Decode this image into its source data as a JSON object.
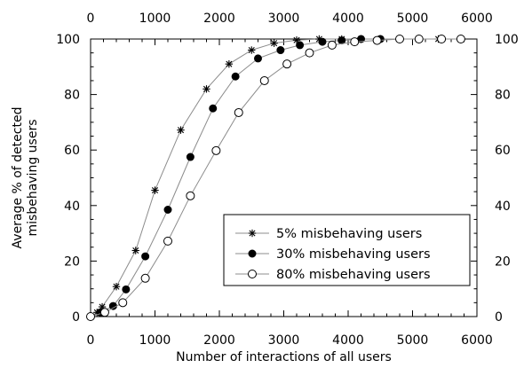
{
  "chart_data": {
    "type": "line",
    "title": "",
    "xlabel": "Number of interactions of all users",
    "ylabel_lines": [
      "Average % of detected",
      "misbehaving users"
    ],
    "xlim": [
      0,
      6000
    ],
    "ylim": [
      0,
      100
    ],
    "x_ticks": [
      "0",
      "1000",
      "2000",
      "3000",
      "4000",
      "5000",
      "6000"
    ],
    "y_ticks": [
      "0",
      "20",
      "40",
      "60",
      "80",
      "100"
    ],
    "mirror_axes": true,
    "grid": false,
    "legend_position": "bottom-right",
    "series": [
      {
        "name": "5% misbehaving users",
        "marker": "asterisk",
        "x": [
          0,
          100,
          180,
          400,
          700,
          1000,
          1400,
          1800,
          2150,
          2500,
          2850,
          3200,
          3550,
          3900,
          4200,
          4500,
          4800,
          5100,
          5400,
          5750
        ],
        "y": [
          0,
          1.5,
          3.5,
          10.8,
          23.8,
          45.5,
          67.2,
          82,
          91,
          96,
          98.5,
          99.6,
          100,
          100,
          100,
          100,
          100,
          100,
          100,
          100
        ]
      },
      {
        "name": "30% misbehaving users",
        "marker": "filled-circle",
        "x": [
          0,
          150,
          350,
          550,
          850,
          1200,
          1550,
          1900,
          2250,
          2600,
          2950,
          3250,
          3600,
          3900,
          4200,
          4500,
          4800,
          5100,
          5450,
          5750
        ],
        "y": [
          0,
          1.5,
          3.8,
          9.8,
          21.7,
          38.5,
          57.5,
          75,
          86.5,
          93,
          96,
          97.8,
          99,
          99.5,
          100,
          100,
          100,
          100,
          100,
          100
        ]
      },
      {
        "name": "80% misbehaving users",
        "marker": "open-circle",
        "x": [
          0,
          220,
          500,
          850,
          1200,
          1550,
          1950,
          2300,
          2700,
          3050,
          3400,
          3750,
          4100,
          4450,
          4800,
          5100,
          5450,
          5750
        ],
        "y": [
          0,
          1.5,
          5,
          13.8,
          27.2,
          43.5,
          59.8,
          73.5,
          85,
          91,
          95,
          97.8,
          99,
          99.5,
          100,
          100,
          100,
          100
        ]
      }
    ]
  }
}
